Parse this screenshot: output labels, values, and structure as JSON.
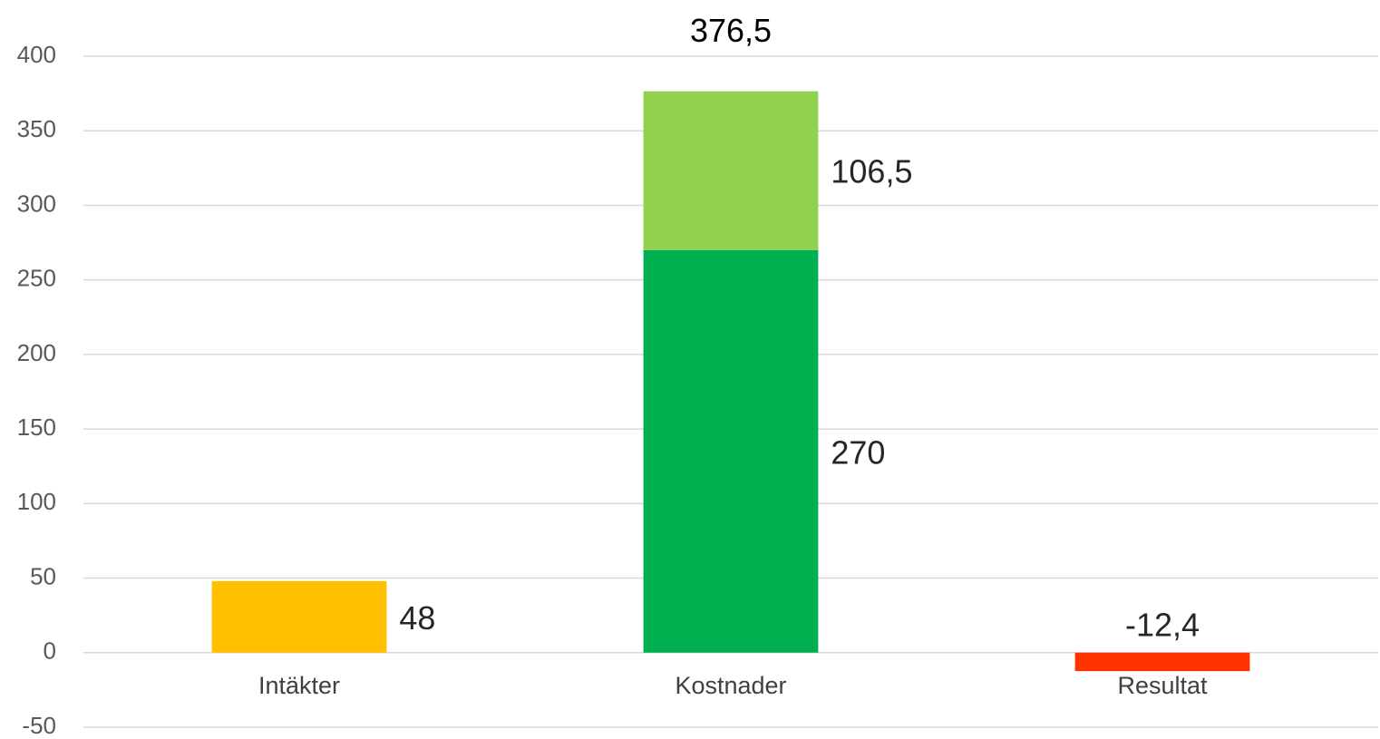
{
  "chart_data": {
    "type": "stacked_bar",
    "categories": [
      "Intäkter",
      "Kostnader",
      "Resultat"
    ],
    "series": [
      {
        "color": "#ffc000",
        "values": [
          48,
          null,
          null
        ]
      },
      {
        "color": "#00b050",
        "values": [
          null,
          270,
          null
        ]
      },
      {
        "color": "#92d050",
        "values": [
          null,
          106.5,
          null
        ],
        "value_labels": [
          null,
          "106,5",
          null
        ]
      },
      {
        "color": "#ff3300",
        "values": [
          null,
          null,
          -12.4
        ],
        "value_labels": [
          null,
          null,
          "-12,4"
        ]
      }
    ],
    "totals": [
      null,
      376.5,
      null
    ],
    "total_labels": [
      null,
      "376,5",
      null
    ],
    "ylim": [
      -50,
      400
    ],
    "yticks": [
      -50,
      0,
      50,
      100,
      150,
      200,
      250,
      300,
      350,
      400
    ],
    "grid": true
  }
}
